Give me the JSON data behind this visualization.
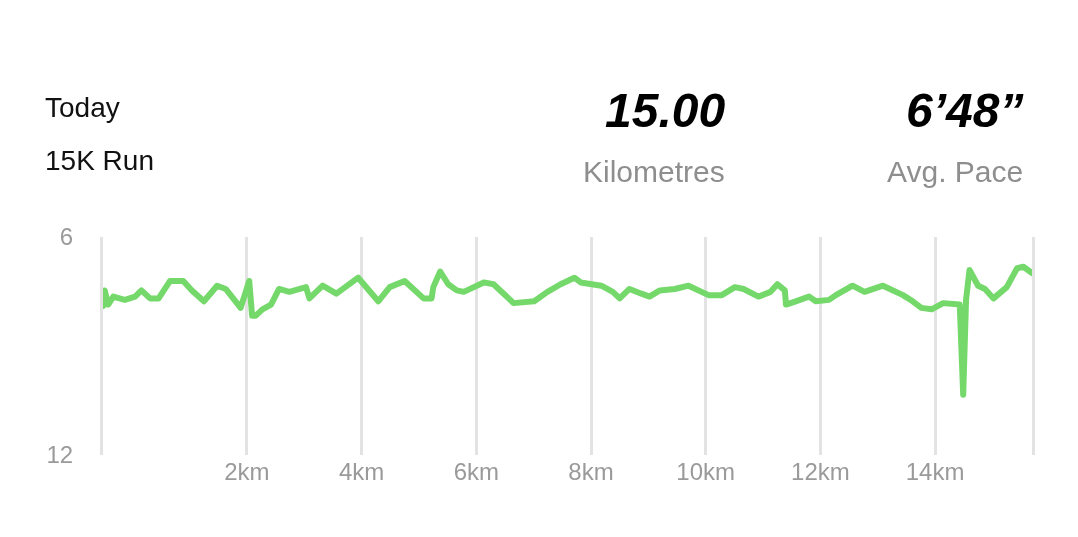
{
  "chart_data": {
    "type": "line",
    "title": "Today",
    "subtitle": "15K Run",
    "annotations": [
      "15.00",
      "Kilometres",
      "6’48”",
      "Avg. Pace"
    ],
    "x": [
      -0.51,
      -0.48,
      -0.42,
      -0.33,
      -0.13,
      0.05,
      0.16,
      0.31,
      0.46,
      0.66,
      0.89,
      1.04,
      1.25,
      1.48,
      1.63,
      1.89,
      2.04,
      2.09,
      2.15,
      2.27,
      2.42,
      2.56,
      2.74,
      3.03,
      3.09,
      3.32,
      3.56,
      3.94,
      4.29,
      4.49,
      4.75,
      5.08,
      5.22,
      5.25,
      5.37,
      5.51,
      5.66,
      5.78,
      6.13,
      6.3,
      6.65,
      7.01,
      7.24,
      7.47,
      7.71,
      7.82,
      8.18,
      8.38,
      8.5,
      8.67,
      8.88,
      9.02,
      9.2,
      9.46,
      9.7,
      10.05,
      10.28,
      10.51,
      10.66,
      10.92,
      11.13,
      11.25,
      11.38,
      11.4,
      11.57,
      11.8,
      11.92,
      12.15,
      12.27,
      12.56,
      12.77,
      13.09,
      13.44,
      13.61,
      13.76,
      13.94,
      14.14,
      14.43,
      14.49,
      14.54,
      14.6,
      14.75,
      14.87,
      15.02,
      15.25,
      15.43,
      15.54,
      15.69
    ],
    "series": [
      {
        "color": "#74d96a",
        "values": [
          7.9,
          7.47,
          7.86,
          7.64,
          7.73,
          7.64,
          7.47,
          7.69,
          7.69,
          7.21,
          7.21,
          7.47,
          7.77,
          7.34,
          7.43,
          7.95,
          7.21,
          8.17,
          8.17,
          7.99,
          7.86,
          7.43,
          7.51,
          7.38,
          7.69,
          7.34,
          7.56,
          7.12,
          7.77,
          7.38,
          7.21,
          7.69,
          7.69,
          7.38,
          6.95,
          7.3,
          7.47,
          7.51,
          7.25,
          7.3,
          7.82,
          7.77,
          7.51,
          7.3,
          7.12,
          7.25,
          7.34,
          7.51,
          7.69,
          7.43,
          7.56,
          7.64,
          7.47,
          7.43,
          7.34,
          7.6,
          7.6,
          7.38,
          7.43,
          7.64,
          7.51,
          7.3,
          7.47,
          7.86,
          7.77,
          7.64,
          7.77,
          7.73,
          7.6,
          7.34,
          7.51,
          7.34,
          7.6,
          7.77,
          7.95,
          7.99,
          7.82,
          7.86,
          10.34,
          7.73,
          6.91,
          7.34,
          7.43,
          7.69,
          7.38,
          6.86,
          6.82,
          6.99
        ]
      }
    ],
    "xlim": [
      -0.51,
      15.69
    ],
    "xticks": [
      {
        "value": 2,
        "label": "2km"
      },
      {
        "value": 4,
        "label": "4km"
      },
      {
        "value": 6,
        "label": "6km"
      },
      {
        "value": 8,
        "label": "8km"
      },
      {
        "value": 10,
        "label": "10km"
      },
      {
        "value": 12,
        "label": "12km"
      },
      {
        "value": 14,
        "label": "14km"
      }
    ],
    "ylim": [
      12,
      6
    ],
    "yticks": [
      6,
      12
    ],
    "grid": "x",
    "line_style": "solid",
    "marker": "none",
    "legend": false
  }
}
